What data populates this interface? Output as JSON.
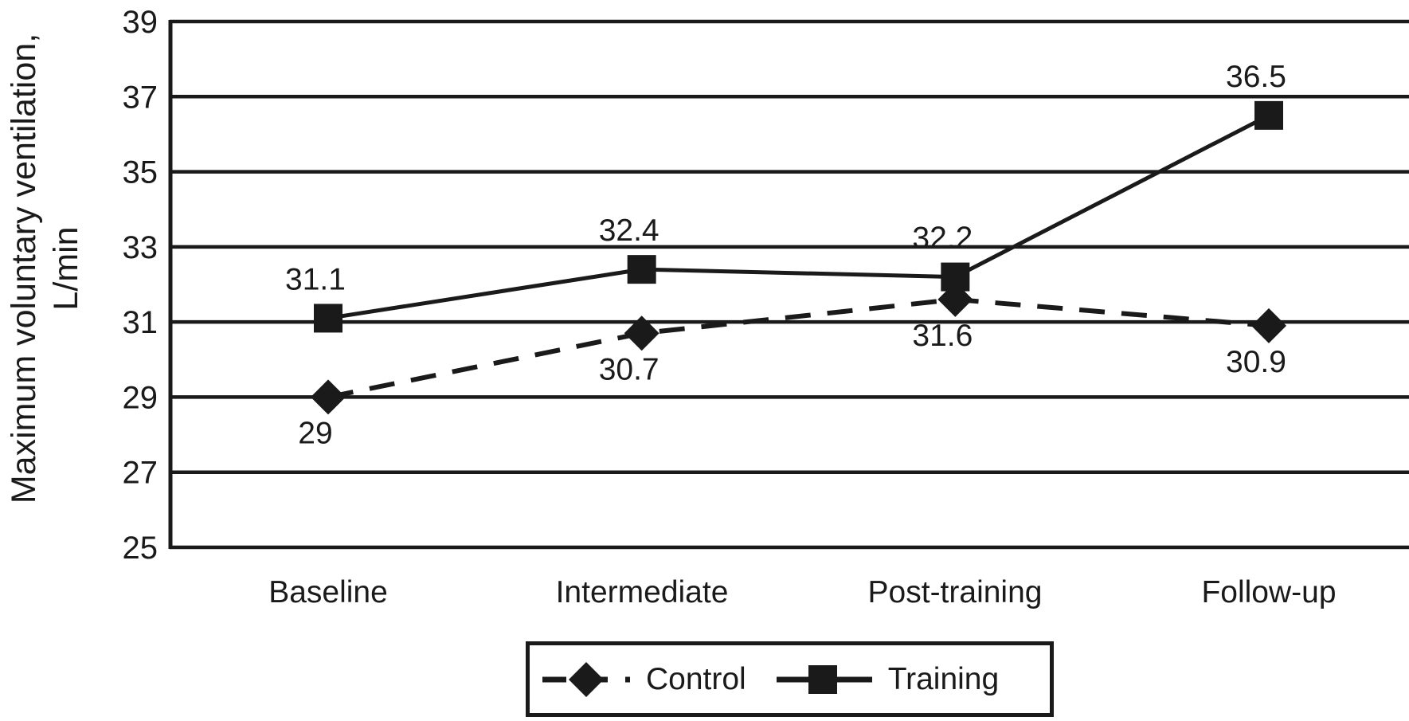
{
  "chart_data": {
    "type": "line",
    "title": "",
    "ylabel_line1": "Maximum voluntary ventilation,",
    "ylabel_line2": "L/min",
    "xlabel": "",
    "categories": [
      "Baseline",
      "Intermediate",
      "Post-training",
      "Follow-up"
    ],
    "series": [
      {
        "name": "Control",
        "marker": "diamond",
        "line_style": "dashed",
        "values": [
          29,
          30.7,
          31.6,
          30.9
        ],
        "data_labels": [
          "29",
          "30.7",
          "31.6",
          "30.9"
        ],
        "label_position": "below"
      },
      {
        "name": "Training",
        "marker": "square",
        "line_style": "solid",
        "values": [
          31.1,
          32.4,
          32.2,
          36.5
        ],
        "data_labels": [
          "31.1",
          "32.4",
          "32.2",
          "36.5"
        ],
        "label_position": "above"
      }
    ],
    "y_axis": {
      "min": 25,
      "max": 39,
      "step": 2,
      "ticks": [
        25,
        27,
        29,
        31,
        33,
        35,
        37,
        39
      ]
    },
    "grid": "horizontal",
    "legend_position": "bottom",
    "ink_color": "#1a1a1a",
    "background_color": "#ffffff"
  }
}
